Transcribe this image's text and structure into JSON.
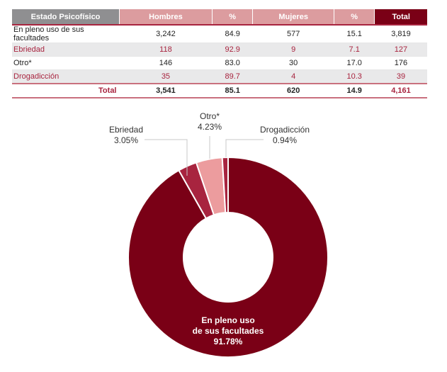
{
  "table": {
    "headers": [
      "Estado Psicofísico",
      "Hombres",
      "%",
      "Mujeres",
      "%",
      "Total"
    ],
    "rows": [
      [
        "En pleno uso de sus facultades",
        "3,242",
        "84.9",
        "577",
        "15.1",
        "3,819"
      ],
      [
        "Ebriedad",
        "118",
        "92.9",
        "9",
        "7.1",
        "127"
      ],
      [
        "Otro*",
        "146",
        "83.0",
        "30",
        "17.0",
        "176"
      ],
      [
        "Drogadicción",
        "35",
        "89.7",
        "4",
        "10.3",
        "39"
      ]
    ],
    "total": [
      "Total",
      "3,541",
      "85.1",
      "620",
      "14.9",
      "4,161"
    ]
  },
  "chart_data": {
    "type": "pie",
    "variant": "donut",
    "start": "12 o'clock, clockwise",
    "slices": [
      {
        "name": "En pleno uso de sus facultades",
        "label_lines": [
          "En pleno uso",
          "de sus facultades"
        ],
        "value": 91.78,
        "pct": "91.78%",
        "color": "#7a0016"
      },
      {
        "name": "Ebriedad",
        "label_lines": [
          "Ebriedad"
        ],
        "value": 3.05,
        "pct": "3.05%",
        "color": "#a8243f"
      },
      {
        "name": "Otro*",
        "label_lines": [
          "Otro*"
        ],
        "value": 4.23,
        "pct": "4.23%",
        "color": "#ec9c9e"
      },
      {
        "name": "Drogadicción",
        "label_lines": [
          "Drogadicción"
        ],
        "value": 0.94,
        "pct": "0.94%",
        "color": "#a8243f"
      }
    ]
  }
}
